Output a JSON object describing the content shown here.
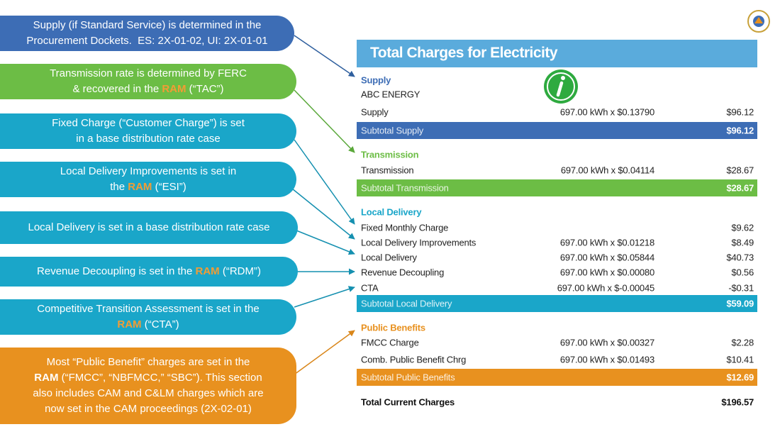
{
  "callouts": [
    {
      "color": "#3d6db5",
      "lines": [
        [
          {
            "text": "Supply (if Standard Service) is determined in the"
          }
        ],
        [
          {
            "text": "Procurement Dockets.  ES: 2X-01-02, UI: 2X-01-01"
          }
        ]
      ]
    },
    {
      "color": "#6cbd45",
      "lines": [
        [
          {
            "text": "Transmission rate is determined by FERC"
          }
        ],
        [
          {
            "text": "& recovered in the "
          },
          {
            "text": "RAM",
            "color": "#f39c34",
            "bold": true
          },
          {
            "text": " (“TAC”)"
          }
        ]
      ]
    },
    {
      "color": "#1aa6c9",
      "lines": [
        [
          {
            "text": "Fixed Charge (“Customer Charge”) is set"
          }
        ],
        [
          {
            "text": "in a base distribution rate case"
          }
        ]
      ]
    },
    {
      "color": "#1aa6c9",
      "lines": [
        [
          {
            "text": "Local Delivery Improvements is set in"
          }
        ],
        [
          {
            "text": "the "
          },
          {
            "text": "RAM",
            "color": "#f39c34",
            "bold": true
          },
          {
            "text": " (“ESI”)"
          }
        ]
      ]
    },
    {
      "color": "#1aa6c9",
      "lines": [
        [
          {
            "text": "Local Delivery is set in a base distribution rate case"
          }
        ]
      ]
    },
    {
      "color": "#1aa6c9",
      "lines": [
        [
          {
            "text": "Revenue Decoupling is set in the "
          },
          {
            "text": "RAM",
            "color": "#f39c34",
            "bold": true
          },
          {
            "text": " (“RDM”)"
          }
        ]
      ]
    },
    {
      "color": "#1aa6c9",
      "lines": [
        [
          {
            "text": "Competitive Transition Assessment is set in the"
          }
        ],
        [
          {
            "text": "RAM",
            "color": "#f39c34",
            "bold": true
          },
          {
            "text": " (“CTA”)"
          }
        ]
      ]
    },
    {
      "color": "#e8911f",
      "lines": [
        [
          {
            "text": "Most “Public Benefit” charges are set in the"
          }
        ],
        [
          {
            "text": "RAM",
            "bold": true
          },
          {
            "text": " (“FMCC”, “NBFMCC,” “SBC”). This section"
          }
        ],
        [
          {
            "text": "also includes CAM and C&LM charges which are"
          }
        ],
        [
          {
            "text": "now set in the CAM proceedings (2X-02-01)"
          }
        ]
      ]
    }
  ],
  "statement": {
    "title": "Total Charges for Electricity",
    "sections": [
      {
        "heading": "Supply",
        "color": "#3d6db5",
        "lines": [
          {
            "label": "ABC ENERGY"
          },
          {
            "label": "Supply",
            "detail": "697.00 kWh x $0.13790",
            "amount": "$96.12"
          }
        ],
        "subtotal": {
          "label": "Subtotal Supply",
          "amount": "$96.12"
        }
      },
      {
        "heading": "Transmission",
        "color": "#6cbd45",
        "lines": [
          {
            "label": "Transmission",
            "detail": "697.00 kWh x $0.04114",
            "amount": "$28.67"
          }
        ],
        "subtotal": {
          "label": "Subtotal Transmission",
          "amount": "$28.67"
        }
      },
      {
        "heading": "Local Delivery",
        "color": "#1aa6c9",
        "lines": [
          {
            "label": "Fixed Monthly Charge",
            "amount": "$9.62"
          },
          {
            "label": "Local Delivery Improvements",
            "detail": "697.00 kWh x $0.01218",
            "amount": "$8.49"
          },
          {
            "label": "Local Delivery",
            "detail": "697.00 kWh x $0.05844",
            "amount": "$40.73"
          },
          {
            "label": "Revenue Decoupling",
            "detail": "697.00 kWh x $0.00080",
            "amount": "$0.56"
          },
          {
            "label": "CTA",
            "detail": "697.00 kWh x $-0.00045",
            "amount": "-$0.31"
          }
        ],
        "subtotal": {
          "label": "Subtotal Local Delivery",
          "amount": "$59.09"
        }
      },
      {
        "heading": "Public Benefits",
        "color": "#e8911f",
        "lines": [
          {
            "label": "FMCC Charge",
            "detail": "697.00 kWh x $0.00327",
            "amount": "$2.28"
          },
          {
            "label": "Comb. Public Benefit Chrg",
            "detail": "697.00 kWh x $0.01493",
            "amount": "$10.41"
          }
        ],
        "subtotal": {
          "label": "Subtotal Public Benefits",
          "amount": "$12.69"
        }
      }
    ],
    "total": {
      "label": "Total Current Charges",
      "amount": "$196.57"
    }
  }
}
